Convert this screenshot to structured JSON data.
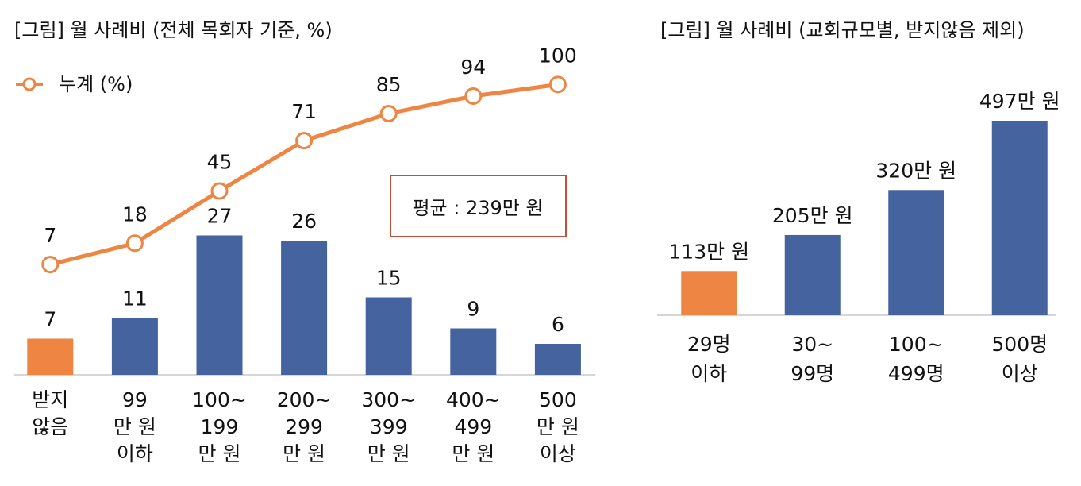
{
  "colors": {
    "bar": "#44639f",
    "highlight": "#ef8543",
    "line": "#ef8543",
    "axis": "#c8c8c8",
    "annotation_border": "#c0503a"
  },
  "chart_data": [
    {
      "type": "bar+line",
      "title": "[그림] 월 사례비 (전체 목회자 기준, %)",
      "categories": [
        [
          "받지",
          "않음"
        ],
        [
          "99",
          "만 원",
          "이하"
        ],
        [
          "100~",
          "199",
          "만 원"
        ],
        [
          "200~",
          "299",
          "만 원"
        ],
        [
          "300~",
          "399",
          "만 원"
        ],
        [
          "400~",
          "499",
          "만 원"
        ],
        [
          "500",
          "만 원",
          "이상"
        ]
      ],
      "series": [
        {
          "type": "bar",
          "values": [
            7,
            11,
            27,
            26,
            15,
            9,
            6
          ],
          "highlight_index": 0
        },
        {
          "type": "line",
          "name": "누계 (%)",
          "values": [
            7,
            18,
            45,
            71,
            85,
            94,
            100
          ]
        }
      ],
      "legend": {
        "label": "누계 (%)",
        "position": "top-left"
      },
      "annotation": "평균 : 239만 원",
      "bar_ylim": [
        0,
        60
      ],
      "line_ylim": [
        -50,
        110
      ],
      "grid": false
    },
    {
      "type": "bar",
      "title": "[그림] 월 사례비 (교회규모별, 받지않음 제외)",
      "categories": [
        [
          "29명",
          "이하"
        ],
        [
          "30~",
          "99명"
        ],
        [
          "100~",
          "499명"
        ],
        [
          "500명",
          "이상"
        ]
      ],
      "values": [
        113,
        205,
        320,
        497
      ],
      "data_labels": [
        "113만 원",
        "205만 원",
        "320만 원",
        "497만 원"
      ],
      "highlight_index": 0,
      "ylim": [
        0,
        497
      ],
      "grid": false
    }
  ]
}
